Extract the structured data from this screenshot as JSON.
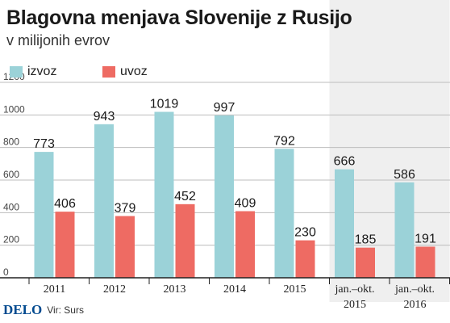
{
  "title": "Blagovna menjava Slovenije z Rusijo",
  "subtitle": "v milijonih evrov",
  "footer": {
    "logo": "DELO",
    "source": "Vir: Surs"
  },
  "colors": {
    "izvoz": "#9bd2d8",
    "uvoz": "#ee6b63",
    "shade": "#efefef",
    "grid": "#bdbdbd"
  },
  "chart_data": {
    "type": "bar",
    "categories": [
      "2011",
      "2012",
      "2013",
      "2014",
      "2015",
      "jan.–okt. 2015",
      "jan.–okt. 2016"
    ],
    "category_lines": [
      [
        "2011"
      ],
      [
        "2012"
      ],
      [
        "2013"
      ],
      [
        "2014"
      ],
      [
        "2015"
      ],
      [
        "jan.–okt.",
        "2015"
      ],
      [
        "jan.–okt.",
        "2016"
      ]
    ],
    "series": [
      {
        "name": "izvoz",
        "values": [
          773,
          943,
          1019,
          997,
          792,
          666,
          586
        ]
      },
      {
        "name": "uvoz",
        "values": [
          406,
          379,
          452,
          409,
          230,
          185,
          191
        ]
      }
    ],
    "ylim": [
      0,
      1200
    ],
    "yticks": [
      0,
      200,
      400,
      600,
      800,
      1000,
      1200
    ],
    "grid": true,
    "legend": "top-left",
    "shaded_categories": [
      "jan.–okt. 2015",
      "jan.–okt. 2016"
    ]
  }
}
